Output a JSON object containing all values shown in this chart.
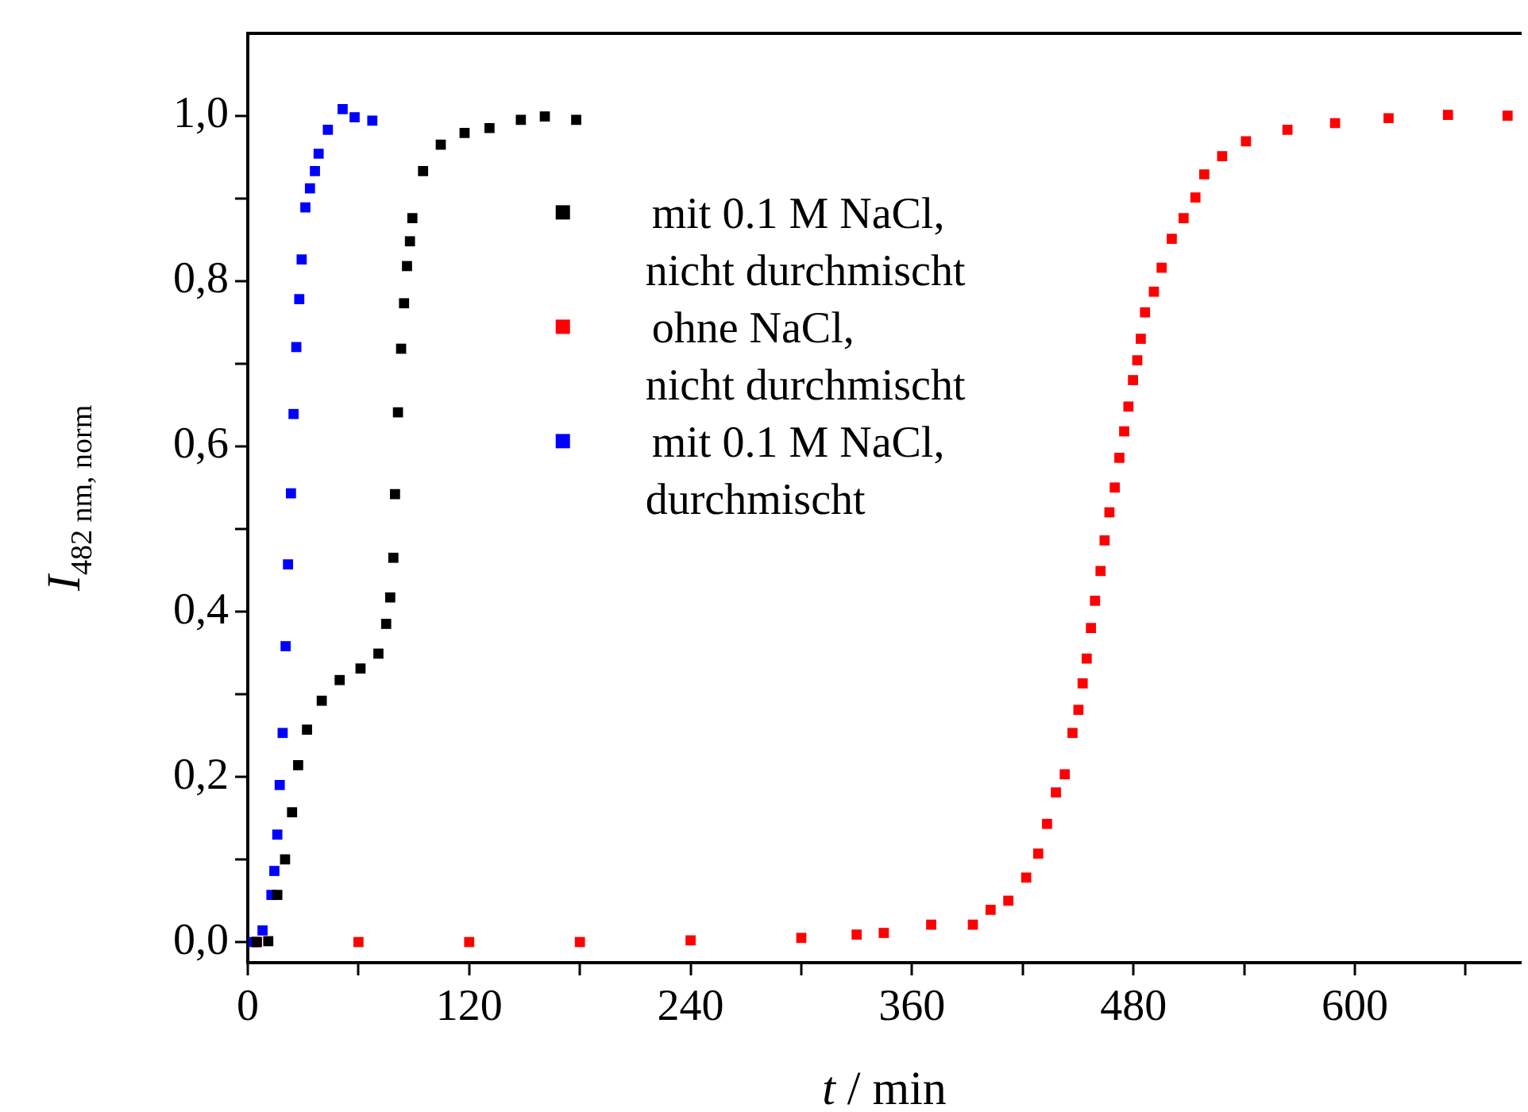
{
  "chart_data": {
    "type": "scatter",
    "xlabel": "t / min",
    "ylabel": "I$_{482 nm, norm}$",
    "marker": "square",
    "legend": "top",
    "grid": false,
    "xlim": [
      0,
      690
    ],
    "ylim": [
      -0.025,
      1.1
    ],
    "xticks": [
      0,
      {
        "value": 60,
        "label": null
      },
      120,
      {
        "value": 180,
        "label": null
      },
      240,
      {
        "value": 300,
        "label": null
      },
      360,
      {
        "value": 420,
        "label": null
      },
      480,
      {
        "value": 540,
        "label": null
      },
      600,
      {
        "value": 660,
        "label": null
      }
    ],
    "yticks": [
      {
        "value": 0,
        "label": "0,0"
      },
      {
        "value": 0.1,
        "label": null
      },
      {
        "value": 0.2,
        "label": "0,2"
      },
      {
        "value": 0.3,
        "label": null
      },
      {
        "value": 0.4,
        "label": "0,4"
      },
      {
        "value": 0.5,
        "label": null
      },
      {
        "value": 0.6,
        "label": "0,6"
      },
      {
        "value": 0.7,
        "label": null
      },
      {
        "value": 0.8,
        "label": "0,8"
      },
      {
        "value": 0.9,
        "label": null
      },
      {
        "value": 1,
        "label": "1,0"
      }
    ],
    "series": [
      {
        "name": "mit 0.1 M NaCl, nicht durchmischt",
        "color": "#000000",
        "x": [
          4.8,
          11.1,
          16,
          20.2,
          24,
          27.3,
          32.1,
          40.1,
          49.8,
          61.1,
          70.8,
          75,
          77.2,
          78.9,
          79.8,
          81.4,
          83.1,
          84.7,
          86.3,
          87.9,
          89.2,
          95,
          104.6,
          117.5,
          131,
          148,
          161,
          178
        ],
        "values": [
          0,
          0.001,
          0.057,
          0.1,
          0.157,
          0.214,
          0.257,
          0.292,
          0.317,
          0.331,
          0.349,
          0.385,
          0.417,
          0.465,
          0.542,
          0.641,
          0.718,
          0.773,
          0.818,
          0.848,
          0.876,
          0.933,
          0.965,
          0.979,
          0.985,
          0.995,
          0.999,
          0.995
        ]
      },
      {
        "name": "ohne NaCl, nicht durchmischt",
        "color": "#ff0000",
        "x": [
          5,
          60,
          120,
          180,
          240,
          300,
          330,
          344.7,
          370.4,
          393,
          402.6,
          412.2,
          421.9,
          428.4,
          433.2,
          438,
          442.8,
          447,
          450.2,
          452.5,
          454.7,
          457,
          459.2,
          462.2,
          464.4,
          467,
          469.9,
          472.4,
          475,
          477.3,
          479.8,
          482.1,
          484,
          486.3,
          491.1,
          495.3,
          500.8,
          507.2,
          513.6,
          518.4,
          528.1,
          541,
          563.5,
          589.3,
          618.3,
          650.5,
          682.8
        ],
        "values": [
          0,
          0,
          0,
          0,
          0.002,
          0.005,
          0.009,
          0.011,
          0.021,
          0.021,
          0.039,
          0.05,
          0.078,
          0.107,
          0.143,
          0.181,
          0.203,
          0.253,
          0.281,
          0.313,
          0.343,
          0.38,
          0.413,
          0.449,
          0.486,
          0.52,
          0.55,
          0.586,
          0.618,
          0.648,
          0.68,
          0.704,
          0.73,
          0.762,
          0.787,
          0.816,
          0.851,
          0.876,
          0.901,
          0.929,
          0.951,
          0.969,
          0.983,
          0.991,
          0.997,
          1.001,
          1
        ]
      },
      {
        "name": "mit 0.1 M NaCl, durchmischt",
        "color": "#0000ff",
        "x": [
          3.2,
          8,
          12.8,
          14.4,
          16,
          17.3,
          18.9,
          20.5,
          21.8,
          23.4,
          24.8,
          26.3,
          27.9,
          29.2,
          31.2,
          33.7,
          36.4,
          38.4,
          43.4,
          51.4,
          57.9,
          67.5
        ],
        "values": [
          0,
          0.014,
          0.057,
          0.086,
          0.13,
          0.19,
          0.253,
          0.358,
          0.457,
          0.543,
          0.639,
          0.72,
          0.778,
          0.826,
          0.889,
          0.912,
          0.933,
          0.954,
          0.983,
          1.008,
          0.998,
          0.994
        ]
      }
    ]
  }
}
